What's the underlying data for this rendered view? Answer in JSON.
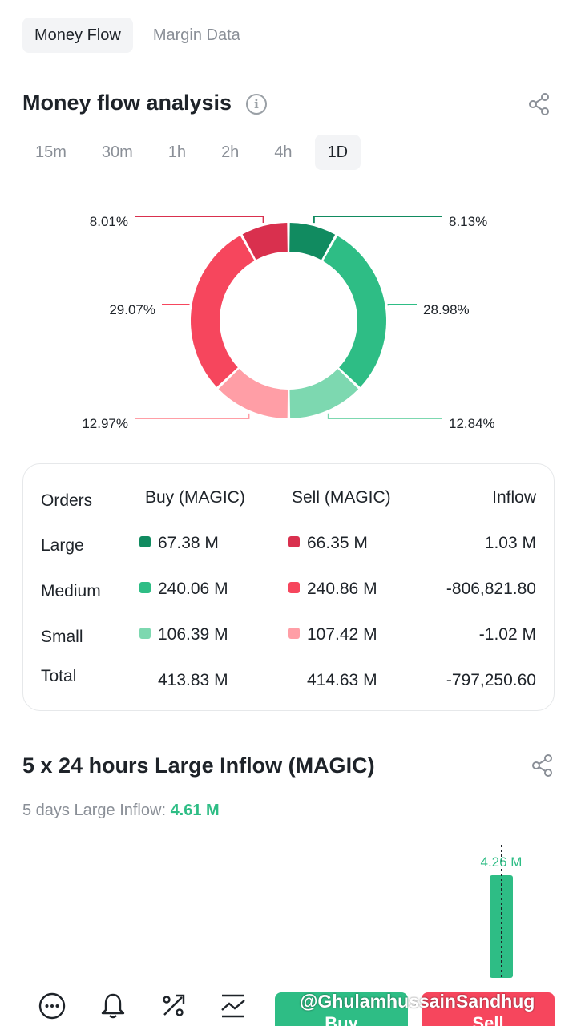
{
  "top_tabs": [
    {
      "label": "Money Flow",
      "active": true
    },
    {
      "label": "Margin Data",
      "active": false
    }
  ],
  "analysis": {
    "title": "Money flow analysis",
    "info_icon": "info-icon",
    "share_icon": "share-icon"
  },
  "time_tabs": [
    {
      "label": "15m",
      "active": false
    },
    {
      "label": "30m",
      "active": false
    },
    {
      "label": "1h",
      "active": false
    },
    {
      "label": "2h",
      "active": false
    },
    {
      "label": "4h",
      "active": false
    },
    {
      "label": "1D",
      "active": true
    }
  ],
  "chart_data": [
    {
      "type": "pie",
      "style": "donut",
      "slices": [
        {
          "label": "8.13%",
          "value": 8.13,
          "color": "#118b60"
        },
        {
          "label": "28.98%",
          "value": 28.98,
          "color": "#2ebd85"
        },
        {
          "label": "12.84%",
          "value": 12.84,
          "color": "#7dd8b0"
        },
        {
          "label": "12.97%",
          "value": 12.97,
          "color": "#ff9ea6"
        },
        {
          "label": "29.07%",
          "value": 29.07,
          "color": "#f6465d"
        },
        {
          "label": "8.01%",
          "value": 8.01,
          "color": "#d9304e"
        }
      ]
    },
    {
      "type": "bar",
      "categories": [
        ""
      ],
      "values": [
        4.26
      ],
      "value_labels": [
        "4.26 M"
      ],
      "color": "#2ebd85"
    }
  ],
  "orders_table": {
    "headers": [
      "Orders",
      "Buy (MAGIC)",
      "Sell (MAGIC)",
      "Inflow"
    ],
    "rows": [
      {
        "order": "Large",
        "buy": "67.38 M",
        "sell": "66.35 M",
        "inflow": "1.03 M",
        "buy_color": "#118b60",
        "sell_color": "#d9304e"
      },
      {
        "order": "Medium",
        "buy": "240.06 M",
        "sell": "240.86 M",
        "inflow": "-806,821.80",
        "buy_color": "#2ebd85",
        "sell_color": "#f6465d"
      },
      {
        "order": "Small",
        "buy": "106.39 M",
        "sell": "107.42 M",
        "inflow": "-1.02 M",
        "buy_color": "#7dd8b0",
        "sell_color": "#ff9ea6"
      },
      {
        "order": "Total",
        "buy": "413.83 M",
        "sell": "414.63 M",
        "inflow": "-797,250.60"
      }
    ]
  },
  "large_inflow": {
    "title": "5 x 24 hours Large Inflow (MAGIC)",
    "sub_label": "5 days Large Inflow:",
    "sub_value": "4.61 M"
  },
  "bottom_bar": {
    "icons": [
      "more-icon",
      "bell-icon",
      "percent-icon",
      "chart-icon"
    ],
    "buy_label": "Buy",
    "sell_label": "Sell",
    "watermark": "@GhulamhussainSandhug"
  }
}
